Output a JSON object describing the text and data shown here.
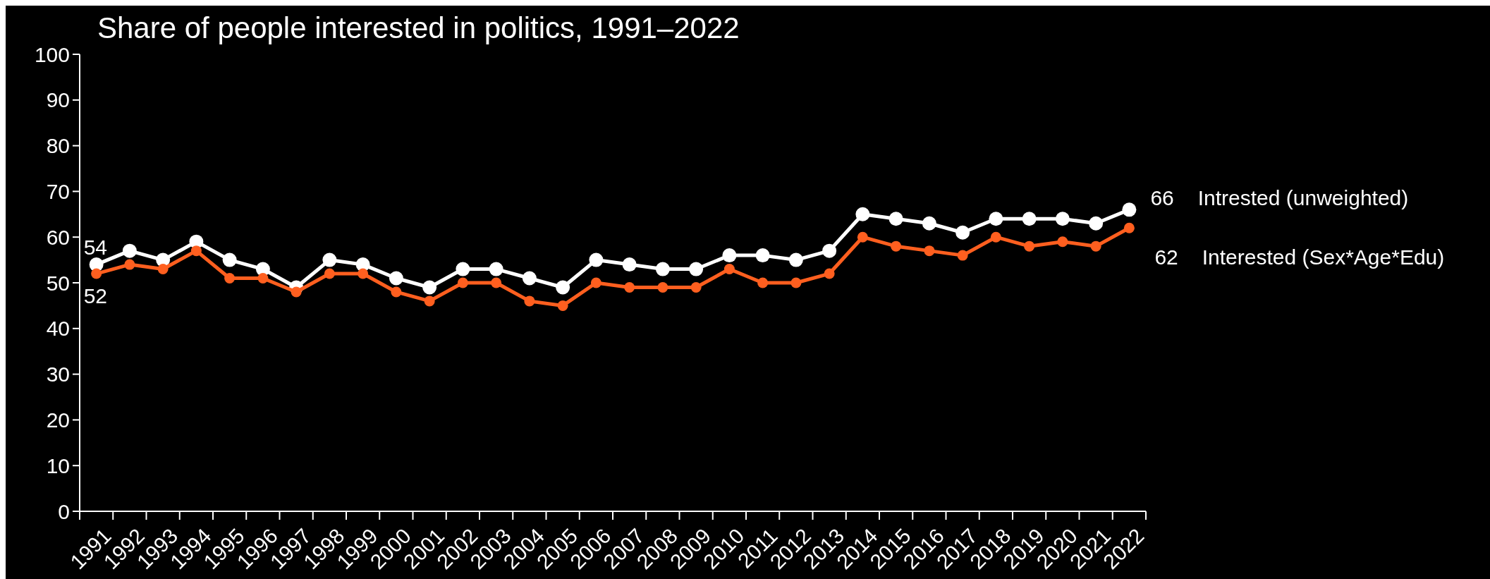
{
  "chart_data": {
    "type": "line",
    "title": "Share of people interested in politics, 1991–2022",
    "categories": [
      "1991",
      "1992",
      "1993",
      "1994",
      "1995",
      "1996",
      "1997",
      "1998",
      "1999",
      "2000",
      "2001",
      "2002",
      "2003",
      "2004",
      "2005",
      "2006",
      "2007",
      "2008",
      "2009",
      "2010",
      "2011",
      "2012",
      "2013",
      "2014",
      "2015",
      "2016",
      "2017",
      "2018",
      "2019",
      "2020",
      "2021",
      "2022"
    ],
    "series": [
      {
        "name": "Intrested (unweighted)",
        "color": "#ffffff",
        "values": [
          54,
          57,
          55,
          59,
          55,
          53,
          49,
          55,
          54,
          51,
          49,
          53,
          53,
          51,
          49,
          55,
          54,
          53,
          53,
          56,
          56,
          55,
          57,
          65,
          64,
          63,
          61,
          64,
          64,
          64,
          63,
          66
        ],
        "value_labels": [
          "54",
          null,
          null,
          null,
          null,
          null,
          null,
          null,
          null,
          null,
          null,
          null,
          null,
          null,
          null,
          null,
          null,
          null,
          null,
          null,
          null,
          null,
          null,
          null,
          null,
          null,
          null,
          null,
          null,
          null,
          null,
          "66"
        ]
      },
      {
        "name": "Interested (Sex*Age*Edu)",
        "color": "#ff5f1f",
        "values": [
          52,
          54,
          53,
          57,
          51,
          51,
          48,
          52,
          52,
          48,
          46,
          50,
          50,
          46,
          45,
          50,
          49,
          49,
          49,
          53,
          50,
          50,
          52,
          60,
          58,
          57,
          56,
          60,
          58,
          59,
          58,
          62
        ],
        "value_labels": [
          "52",
          null,
          null,
          null,
          null,
          null,
          null,
          null,
          null,
          null,
          null,
          null,
          null,
          null,
          null,
          null,
          null,
          null,
          null,
          null,
          null,
          null,
          null,
          null,
          null,
          null,
          null,
          null,
          null,
          null,
          null,
          "62"
        ]
      }
    ],
    "ylim": [
      0,
      100
    ],
    "yticks": [
      0,
      10,
      20,
      30,
      40,
      50,
      60,
      70,
      80,
      90,
      100
    ],
    "grid": false,
    "marker": "circle",
    "line_style": "solid"
  }
}
